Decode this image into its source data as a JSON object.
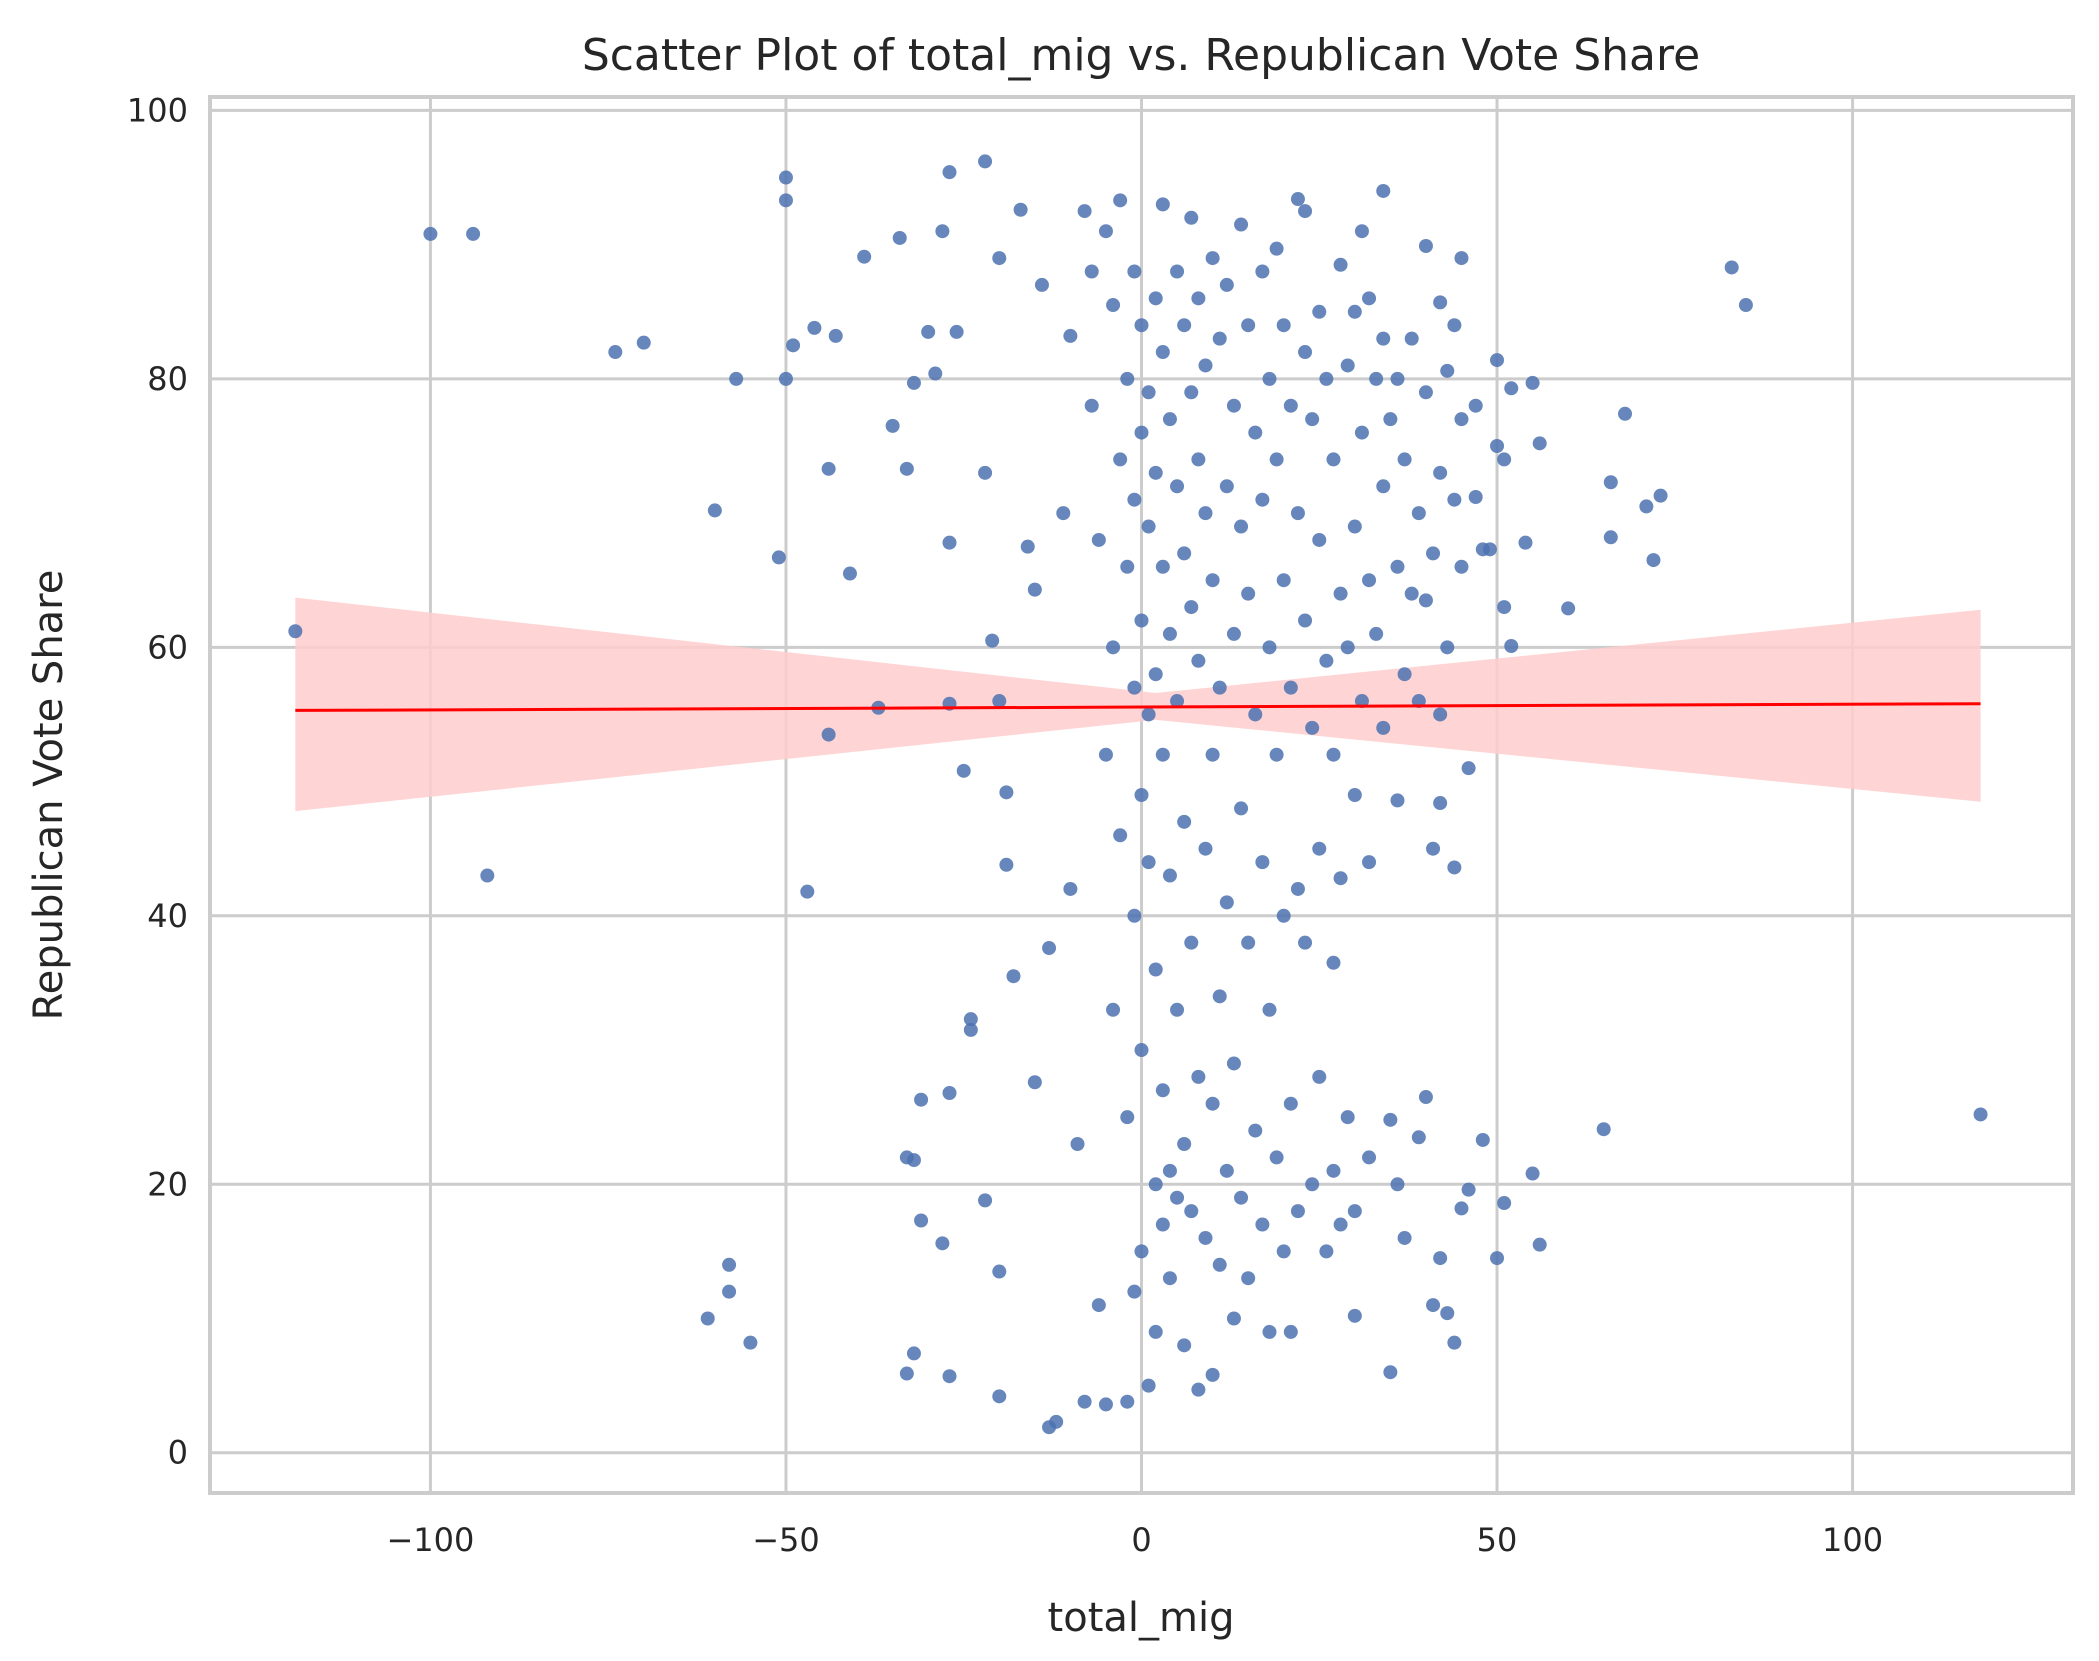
{
  "chart_data": {
    "type": "scatter",
    "title": "Scatter Plot of total_mig vs. Republican Vote Share",
    "xlabel": "total_mig",
    "ylabel": "Republican Vote Share",
    "xlim": [
      -131,
      131
    ],
    "ylim": [
      -3,
      101
    ],
    "x_ticks": [
      -100,
      -50,
      0,
      50,
      100
    ],
    "x_tick_labels": [
      "−100",
      "−50",
      "0",
      "50",
      "100"
    ],
    "y_ticks": [
      0,
      20,
      40,
      60,
      80,
      100
    ],
    "y_tick_labels": [
      "0",
      "20",
      "40",
      "60",
      "80",
      "100"
    ],
    "grid": true,
    "legend": "none",
    "series": [
      {
        "kind": "points",
        "color": "#4c72b0",
        "note_points": "representative sample of the dense cloud; outliers read from the figure",
        "points": [
          [
            -119,
            61.2
          ],
          [
            -100,
            90.8
          ],
          [
            -94,
            90.8
          ],
          [
            -92,
            43.0
          ],
          [
            -74,
            82.0
          ],
          [
            -70,
            82.7
          ],
          [
            -60,
            70.2
          ],
          [
            -61,
            10.0
          ],
          [
            -58,
            12.0
          ],
          [
            -58,
            14.0
          ],
          [
            -55,
            8.2
          ],
          [
            -57,
            80.0
          ],
          [
            -51,
            66.7
          ],
          [
            -50,
            93.3
          ],
          [
            -50,
            95.0
          ],
          [
            -50,
            80.0
          ],
          [
            -49,
            82.5
          ],
          [
            -47,
            41.8
          ],
          [
            -46,
            83.8
          ],
          [
            -44,
            73.3
          ],
          [
            -44,
            53.5
          ],
          [
            -43,
            83.2
          ],
          [
            -41,
            65.5
          ],
          [
            -39,
            89.1
          ],
          [
            -37,
            55.5
          ],
          [
            -35,
            76.5
          ],
          [
            -34,
            90.5
          ],
          [
            -33,
            73.3
          ],
          [
            -33,
            22.0
          ],
          [
            -33,
            5.9
          ],
          [
            -32,
            79.7
          ],
          [
            -32,
            21.8
          ],
          [
            -32,
            7.4
          ],
          [
            -31,
            17.3
          ],
          [
            -31,
            26.3
          ],
          [
            -30,
            83.5
          ],
          [
            -29,
            80.4
          ],
          [
            -28,
            91.0
          ],
          [
            -28,
            15.6
          ],
          [
            -27,
            95.4
          ],
          [
            -27,
            67.8
          ],
          [
            -27,
            55.8
          ],
          [
            -27,
            26.8
          ],
          [
            -27,
            5.7
          ],
          [
            -26,
            83.5
          ],
          [
            -25,
            50.8
          ],
          [
            -24,
            32.3
          ],
          [
            -24,
            31.5
          ],
          [
            -22,
            96.2
          ],
          [
            -22,
            73.0
          ],
          [
            -22,
            18.8
          ],
          [
            -21,
            60.5
          ],
          [
            -20,
            89.0
          ],
          [
            -20,
            56.0
          ],
          [
            -20,
            13.5
          ],
          [
            -20,
            4.2
          ],
          [
            -19,
            49.2
          ],
          [
            -19,
            43.8
          ],
          [
            -18,
            35.5
          ],
          [
            -17,
            92.6
          ],
          [
            -16,
            67.5
          ],
          [
            -15,
            64.3
          ],
          [
            -15,
            27.6
          ],
          [
            -14,
            87.0
          ],
          [
            -13,
            37.6
          ],
          [
            -13,
            1.9
          ],
          [
            -12,
            2.3
          ],
          [
            -11,
            70.0
          ],
          [
            -10,
            83.2
          ],
          [
            -10,
            42.0
          ],
          [
            -9,
            23.0
          ],
          [
            -8,
            92.5
          ],
          [
            -8,
            3.8
          ],
          [
            -7,
            88.0
          ],
          [
            -7,
            78.0
          ],
          [
            -6,
            68.0
          ],
          [
            -6,
            11.0
          ],
          [
            -5,
            91.0
          ],
          [
            -5,
            52.0
          ],
          [
            -5,
            3.6
          ],
          [
            -4,
            85.5
          ],
          [
            -4,
            60.0
          ],
          [
            -4,
            33.0
          ],
          [
            -3,
            93.3
          ],
          [
            -3,
            74.0
          ],
          [
            -3,
            46.0
          ],
          [
            -2,
            80.0
          ],
          [
            -2,
            66.0
          ],
          [
            -2,
            25.0
          ],
          [
            -2,
            3.8
          ],
          [
            -1,
            88.0
          ],
          [
            -1,
            71.0
          ],
          [
            -1,
            57.0
          ],
          [
            -1,
            40.0
          ],
          [
            -1,
            12.0
          ],
          [
            0,
            84.0
          ],
          [
            0,
            76.0
          ],
          [
            0,
            62.0
          ],
          [
            0,
            49.0
          ],
          [
            0,
            30.0
          ],
          [
            0,
            15.0
          ],
          [
            1,
            79.0
          ],
          [
            1,
            69.0
          ],
          [
            1,
            55.0
          ],
          [
            1,
            44.0
          ],
          [
            1,
            5.0
          ],
          [
            2,
            86.0
          ],
          [
            2,
            73.0
          ],
          [
            2,
            58.0
          ],
          [
            2,
            36.0
          ],
          [
            2,
            20.0
          ],
          [
            2,
            9.0
          ],
          [
            3,
            93.0
          ],
          [
            3,
            82.0
          ],
          [
            3,
            66.0
          ],
          [
            3,
            52.0
          ],
          [
            3,
            27.0
          ],
          [
            3,
            17.0
          ],
          [
            4,
            77.0
          ],
          [
            4,
            61.0
          ],
          [
            4,
            43.0
          ],
          [
            4,
            21.0
          ],
          [
            4,
            13.0
          ],
          [
            5,
            88.0
          ],
          [
            5,
            72.0
          ],
          [
            5,
            56.0
          ],
          [
            5,
            33.0
          ],
          [
            5,
            19.0
          ],
          [
            6,
            84.0
          ],
          [
            6,
            67.0
          ],
          [
            6,
            47.0
          ],
          [
            6,
            23.0
          ],
          [
            6,
            8.0
          ],
          [
            7,
            92.0
          ],
          [
            7,
            79.0
          ],
          [
            7,
            63.0
          ],
          [
            7,
            38.0
          ],
          [
            7,
            18.0
          ],
          [
            8,
            86.0
          ],
          [
            8,
            74.0
          ],
          [
            8,
            59.0
          ],
          [
            8,
            28.0
          ],
          [
            8,
            4.7
          ],
          [
            9,
            81.0
          ],
          [
            9,
            70.0
          ],
          [
            9,
            45.0
          ],
          [
            9,
            16.0
          ],
          [
            10,
            89.0
          ],
          [
            10,
            65.0
          ],
          [
            10,
            52.0
          ],
          [
            10,
            26.0
          ],
          [
            10,
            5.8
          ],
          [
            11,
            83.0
          ],
          [
            11,
            57.0
          ],
          [
            11,
            34.0
          ],
          [
            11,
            14.0
          ],
          [
            12,
            87.0
          ],
          [
            12,
            72.0
          ],
          [
            12,
            41.0
          ],
          [
            12,
            21.0
          ],
          [
            13,
            78.0
          ],
          [
            13,
            61.0
          ],
          [
            13,
            29.0
          ],
          [
            13,
            10.0
          ],
          [
            14,
            91.5
          ],
          [
            14,
            69.0
          ],
          [
            14,
            48.0
          ],
          [
            14,
            19.0
          ],
          [
            15,
            84.0
          ],
          [
            15,
            64.0
          ],
          [
            15,
            38.0
          ],
          [
            15,
            13.0
          ],
          [
            16,
            76.0
          ],
          [
            16,
            55.0
          ],
          [
            16,
            24.0
          ],
          [
            17,
            88.0
          ],
          [
            17,
            71.0
          ],
          [
            17,
            44.0
          ],
          [
            17,
            17.0
          ],
          [
            18,
            80.0
          ],
          [
            18,
            60.0
          ],
          [
            18,
            33.0
          ],
          [
            18,
            9.0
          ],
          [
            19,
            89.7
          ],
          [
            19,
            74.0
          ],
          [
            19,
            52.0
          ],
          [
            19,
            22.0
          ],
          [
            20,
            84.0
          ],
          [
            20,
            65.0
          ],
          [
            20,
            40.0
          ],
          [
            20,
            15.0
          ],
          [
            21,
            78.0
          ],
          [
            21,
            57.0
          ],
          [
            21,
            26.0
          ],
          [
            21,
            9.0
          ],
          [
            22,
            93.4
          ],
          [
            22,
            70.0
          ],
          [
            22,
            42.0
          ],
          [
            22,
            18.0
          ],
          [
            23,
            92.5
          ],
          [
            23,
            82.0
          ],
          [
            23,
            62.0
          ],
          [
            23,
            38.0
          ],
          [
            24,
            77.0
          ],
          [
            24,
            54.0
          ],
          [
            24,
            20.0
          ],
          [
            25,
            85.0
          ],
          [
            25,
            68.0
          ],
          [
            25,
            45.0
          ],
          [
            25,
            28.0
          ],
          [
            26,
            80.0
          ],
          [
            26,
            59.0
          ],
          [
            26,
            15.0
          ],
          [
            27,
            74.0
          ],
          [
            27,
            52.0
          ],
          [
            27,
            36.5
          ],
          [
            27,
            21.0
          ],
          [
            28,
            88.5
          ],
          [
            28,
            64.0
          ],
          [
            28,
            42.8
          ],
          [
            28,
            17.0
          ],
          [
            29,
            81.0
          ],
          [
            29,
            60.0
          ],
          [
            29,
            25.0
          ],
          [
            30,
            85.0
          ],
          [
            30,
            69.0
          ],
          [
            30,
            49.0
          ],
          [
            30,
            18.0
          ],
          [
            30,
            10.2
          ],
          [
            31,
            91.0
          ],
          [
            31,
            76.0
          ],
          [
            31,
            56.0
          ],
          [
            32,
            86.0
          ],
          [
            32,
            65.0
          ],
          [
            32,
            44.0
          ],
          [
            32,
            22.0
          ],
          [
            33,
            80.0
          ],
          [
            33,
            61.0
          ],
          [
            34,
            94.0
          ],
          [
            34,
            83.0
          ],
          [
            34,
            72.0
          ],
          [
            34,
            54.0
          ],
          [
            35,
            77.0
          ],
          [
            35,
            24.8
          ],
          [
            35,
            6.0
          ],
          [
            36,
            80.0
          ],
          [
            36,
            66.0
          ],
          [
            36,
            48.6
          ],
          [
            36,
            20.0
          ],
          [
            37,
            74.0
          ],
          [
            37,
            58.0
          ],
          [
            37,
            16.0
          ],
          [
            38,
            83.0
          ],
          [
            38,
            64.0
          ],
          [
            39,
            70.0
          ],
          [
            39,
            56.0
          ],
          [
            39,
            23.5
          ],
          [
            40,
            89.9
          ],
          [
            40,
            79.0
          ],
          [
            40,
            63.5
          ],
          [
            40,
            26.5
          ],
          [
            41,
            67.0
          ],
          [
            41,
            45.0
          ],
          [
            41,
            11.0
          ],
          [
            42,
            85.7
          ],
          [
            42,
            73.0
          ],
          [
            42,
            55.0
          ],
          [
            42,
            48.4
          ],
          [
            42,
            14.5
          ],
          [
            43,
            80.6
          ],
          [
            43,
            60.0
          ],
          [
            43,
            10.4
          ],
          [
            44,
            84.0
          ],
          [
            44,
            71.0
          ],
          [
            44,
            43.6
          ],
          [
            44,
            8.2
          ],
          [
            45,
            89.0
          ],
          [
            45,
            77.0
          ],
          [
            45,
            66.0
          ],
          [
            45,
            18.2
          ],
          [
            46,
            51.0
          ],
          [
            46,
            19.6
          ],
          [
            47,
            78.0
          ],
          [
            47,
            71.2
          ],
          [
            48,
            67.3
          ],
          [
            48,
            23.3
          ],
          [
            49,
            67.3
          ],
          [
            50,
            81.4
          ],
          [
            50,
            75.0
          ],
          [
            50,
            14.5
          ],
          [
            51,
            74.0
          ],
          [
            51,
            63.0
          ],
          [
            51,
            18.6
          ],
          [
            52,
            79.3
          ],
          [
            52,
            60.1
          ],
          [
            54,
            67.8
          ],
          [
            55,
            79.7
          ],
          [
            55,
            20.8
          ],
          [
            56,
            75.2
          ],
          [
            56,
            15.5
          ],
          [
            60,
            62.9
          ],
          [
            65,
            24.1
          ],
          [
            66,
            68.2
          ],
          [
            66,
            72.3
          ],
          [
            68,
            77.4
          ],
          [
            71,
            70.5
          ],
          [
            72,
            66.5
          ],
          [
            73,
            71.3
          ],
          [
            83,
            88.3
          ],
          [
            85,
            85.5
          ],
          [
            118,
            25.2
          ]
        ]
      },
      {
        "kind": "regression",
        "color": "#ff0000",
        "line": [
          [
            -119,
            55.3
          ],
          [
            118,
            55.8
          ]
        ],
        "ci_color": "#ffcccc",
        "ci_upper": [
          [
            -119,
            63.7
          ],
          [
            2,
            56.6
          ],
          [
            118,
            62.8
          ]
        ],
        "ci_lower": [
          [
            -119,
            47.8
          ],
          [
            2,
            54.6
          ],
          [
            118,
            48.5
          ]
        ]
      }
    ]
  }
}
